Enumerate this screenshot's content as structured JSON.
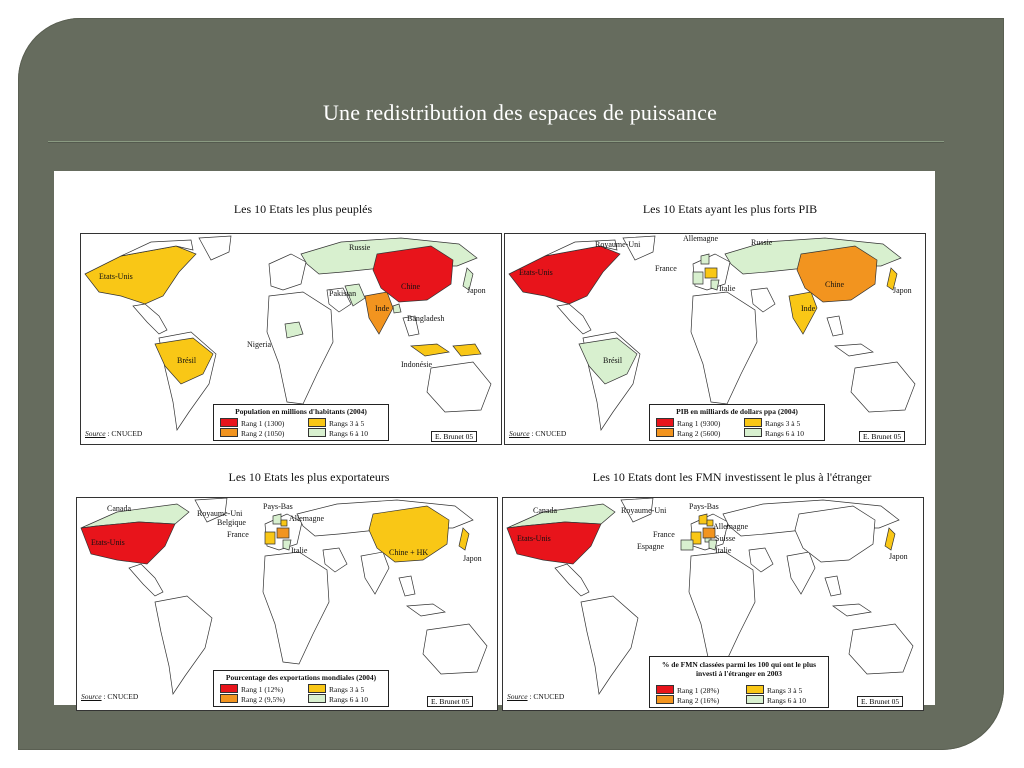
{
  "slide_title": "Une redistribution des espaces de puissance",
  "colors": {
    "background": "#666c5e",
    "rank1": "#e8141b",
    "rank2": "#f2941f",
    "rank3_5": "#f9c716",
    "rank6_10": "#d8f0cf"
  },
  "maps": [
    {
      "title": "Les 10 Etats les plus peuplés",
      "legend_title": "Population en millions d'habitants (2004)",
      "legend": {
        "r1": "Rang 1 (1300)",
        "r2": "Rang 2 (1050)",
        "r35": "Rangs 3 à 5",
        "r610": "Rangs 6 à 10"
      },
      "source_label": "Source",
      "source_value": ": CNUCED",
      "credit": "E. Brunet 05",
      "labels": [
        "Russie",
        "Etats-Unis",
        "Pakistan",
        "Chine",
        "Japon",
        "Inde",
        "Bangladesh",
        "Nigeria",
        "Brésil",
        "Indonésie"
      ]
    },
    {
      "title": "Les 10 Etats ayant les plus forts PIB",
      "legend_title": "PIB en milliards de dollars ppa (2004)",
      "legend": {
        "r1": "Rang 1 (9300)",
        "r2": "Rang 2 (5600)",
        "r35": "Rangs 3 à 5",
        "r610": "Rangs 6 à 10"
      },
      "source_label": "Source",
      "source_value": ": CNUCED",
      "credit": "E. Brunet 05",
      "labels": [
        "Allemagne",
        "Royaume-Uni",
        "Russie",
        "France",
        "Etats-Unis",
        "Italie",
        "Chine",
        "Japon",
        "Inde",
        "Brésil"
      ]
    },
    {
      "title": "Les 10 Etats les plus exportateurs",
      "legend_title": "Pourcentage des exportations mondiales (2004)",
      "legend": {
        "r1": "Rang 1 (12%)",
        "r2": "Rang 2 (9,5%)",
        "r35": "Rangs 3 à 5",
        "r610": "Rangs 6 à 10"
      },
      "source_label": "Source",
      "source_value": ": CNUCED",
      "credit": "E. Brunet 05",
      "labels": [
        "Canada",
        "Pays-Bas",
        "Royaume-Uni",
        "Belgique",
        "Allemagne",
        "France",
        "Etats-Unis",
        "Italie",
        "Chine + HK",
        "Japon"
      ]
    },
    {
      "title": "Les 10 Etats dont les FMN investissent le plus à l'étranger",
      "legend_title_1": "% de FMN classées parmi les 100 qui ont le plus",
      "legend_title_2": "investi à l'étranger en 2003",
      "legend": {
        "r1": "Rang 1 (28%)",
        "r2": "Rang 2 (16%)",
        "r35": "Rangs 3 à 5",
        "r610": "Rangs 6 à 10"
      },
      "source_label": "Source",
      "source_value": ": CNUCED",
      "credit": "E. Brunet 05",
      "labels": [
        "Canada",
        "Royaume-Uni",
        "Pays-Bas",
        "Allemagne",
        "France",
        "Suisse",
        "Espagne",
        "Etats-Unis",
        "Italie",
        "Japon"
      ]
    }
  ]
}
